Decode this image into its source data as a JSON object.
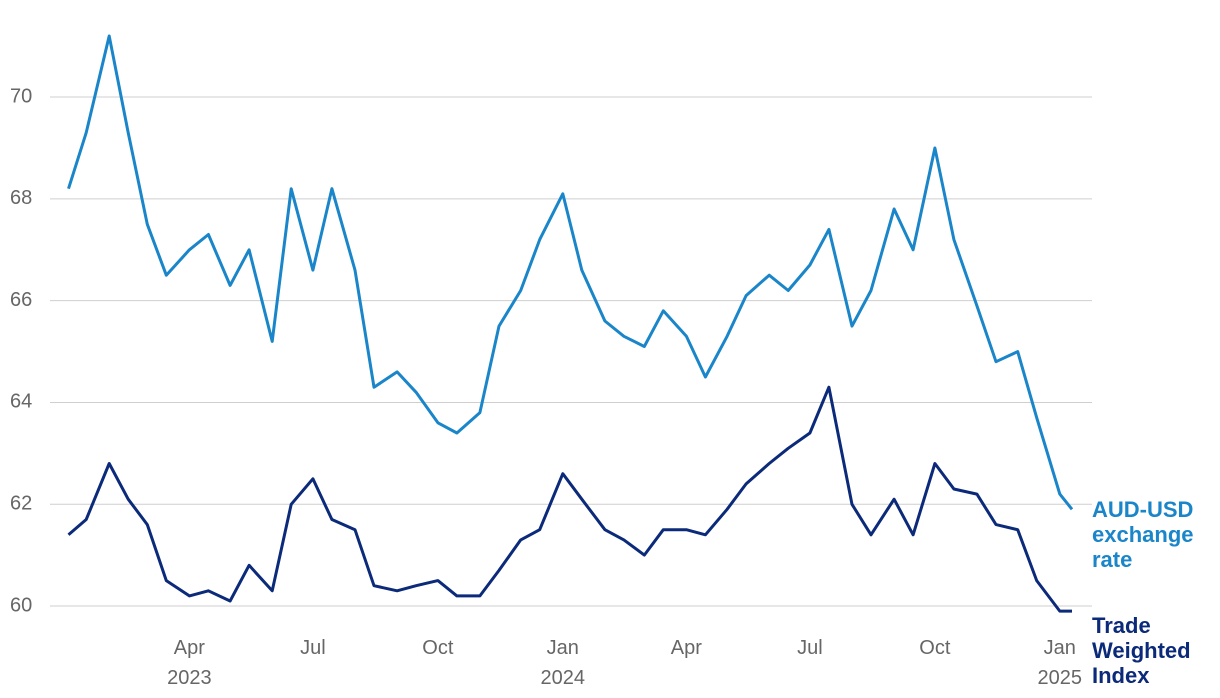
{
  "chart_data": {
    "type": "line",
    "x": [
      "2023-01-02",
      "2023-01-15",
      "2023-02-01",
      "2023-02-15",
      "2023-03-01",
      "2023-03-15",
      "2023-04-01",
      "2023-04-15",
      "2023-05-01",
      "2023-05-15",
      "2023-06-01",
      "2023-06-15",
      "2023-07-01",
      "2023-07-15",
      "2023-08-01",
      "2023-08-15",
      "2023-09-01",
      "2023-09-15",
      "2023-10-01",
      "2023-10-15",
      "2023-11-01",
      "2023-11-15",
      "2023-12-01",
      "2023-12-15",
      "2024-01-01",
      "2024-01-15",
      "2024-02-01",
      "2024-02-15",
      "2024-03-01",
      "2024-03-15",
      "2024-04-01",
      "2024-04-15",
      "2024-05-01",
      "2024-05-15",
      "2024-06-01",
      "2024-06-15",
      "2024-07-01",
      "2024-07-15",
      "2024-08-01",
      "2024-08-15",
      "2024-09-01",
      "2024-09-15",
      "2024-10-01",
      "2024-10-15",
      "2024-11-01",
      "2024-11-15",
      "2024-12-01",
      "2024-12-15",
      "2025-01-01",
      "2025-01-10"
    ],
    "series": [
      {
        "name": "AUD-USD exchange rate",
        "color": "#1a86c9",
        "values": [
          68.2,
          69.3,
          71.2,
          69.3,
          67.5,
          66.5,
          67.0,
          67.3,
          66.3,
          67.0,
          65.2,
          68.2,
          66.6,
          68.2,
          66.6,
          64.3,
          64.6,
          64.2,
          63.6,
          63.4,
          63.8,
          65.5,
          66.2,
          67.2,
          68.1,
          66.6,
          65.6,
          65.3,
          65.1,
          65.8,
          65.3,
          64.5,
          65.3,
          66.1,
          66.5,
          66.2,
          66.7,
          67.4,
          65.5,
          66.2,
          67.8,
          67.0,
          69.0,
          67.2,
          65.9,
          64.8,
          65.0,
          63.7,
          62.2,
          61.9
        ]
      },
      {
        "name": "Trade Weighted Index",
        "color": "#0b2a7a",
        "values": [
          61.4,
          61.7,
          62.8,
          62.1,
          61.6,
          60.5,
          60.2,
          60.3,
          60.1,
          60.8,
          60.3,
          62.0,
          62.5,
          61.7,
          61.5,
          60.4,
          60.3,
          60.4,
          60.5,
          60.2,
          60.2,
          60.7,
          61.3,
          61.5,
          62.6,
          62.1,
          61.5,
          61.3,
          61.0,
          61.5,
          61.5,
          61.4,
          61.9,
          62.4,
          62.8,
          63.1,
          63.4,
          64.3,
          62.0,
          61.4,
          62.1,
          61.4,
          62.8,
          62.3,
          62.2,
          61.6,
          61.5,
          60.5,
          59.9,
          59.9
        ]
      }
    ],
    "xlim": [
      "2023-01-02",
      "2025-01-10"
    ],
    "xticks": [
      {
        "value": "2023-04-01",
        "label": "Apr 2023"
      },
      {
        "value": "2023-07-01",
        "label": "Jul"
      },
      {
        "value": "2023-10-01",
        "label": "Oct"
      },
      {
        "value": "2024-01-01",
        "label": "Jan 2024"
      },
      {
        "value": "2024-04-01",
        "label": "Apr"
      },
      {
        "value": "2024-07-01",
        "label": "Jul"
      },
      {
        "value": "2024-10-01",
        "label": "Oct"
      },
      {
        "value": "2025-01-01",
        "label": "Jan 2025"
      }
    ],
    "ylim": [
      59.5,
      71.5
    ],
    "yticks": [
      60,
      62,
      64,
      66,
      68,
      70
    ],
    "grid": true
  }
}
